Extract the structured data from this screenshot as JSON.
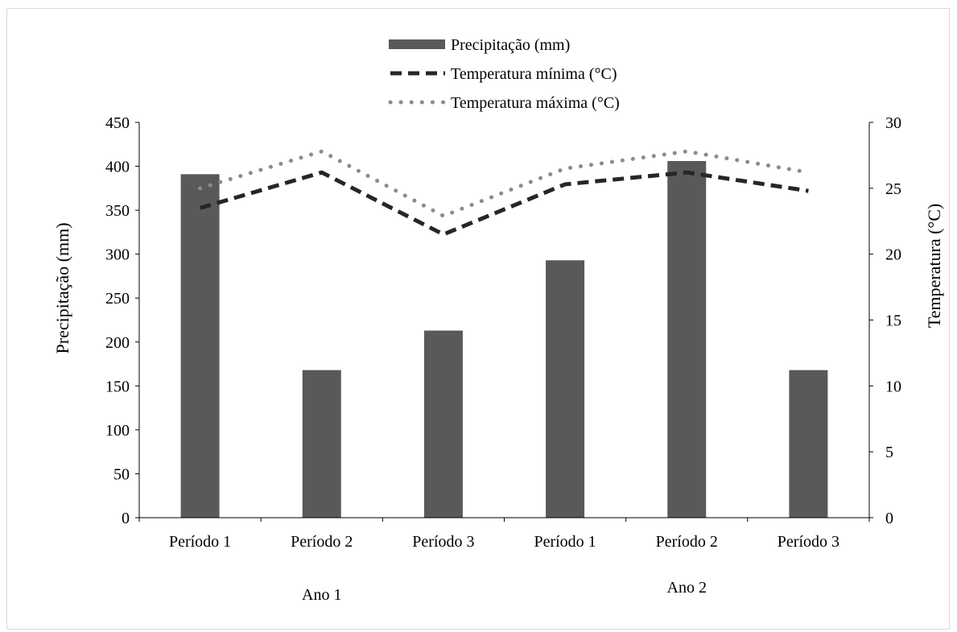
{
  "chart_data": {
    "type": "bar",
    "categories": [
      "Período 1",
      "Período 2",
      "Período 3",
      "Período 1",
      "Período 2",
      "Período 3"
    ],
    "groups": [
      {
        "label": "Ano 1",
        "span": [
          0,
          2
        ]
      },
      {
        "label": "Ano 2",
        "span": [
          3,
          5
        ]
      }
    ],
    "series": [
      {
        "name": "Precipitação (mm)",
        "type": "bar",
        "axis": "left",
        "color": "#595959",
        "values": [
          391,
          168,
          213,
          293,
          406,
          168
        ]
      },
      {
        "name": "Temperatura mínima (°C)",
        "type": "line",
        "style": "dashed",
        "axis": "right",
        "color": "#262626",
        "values": [
          23.5,
          26.2,
          21.5,
          25.3,
          26.2,
          24.8
        ]
      },
      {
        "name": "Temperatura máxima (°C)",
        "type": "line",
        "style": "dotted",
        "axis": "right",
        "color": "#8c8c8c",
        "values": [
          25.0,
          27.8,
          22.9,
          26.5,
          27.8,
          26.2
        ]
      }
    ],
    "ylabel": "Precipitação (mm)",
    "y2label": "Temperatura (°C)",
    "ylim": [
      0,
      450
    ],
    "yticks": [
      0,
      50,
      100,
      150,
      200,
      250,
      300,
      350,
      400,
      450
    ],
    "y2lim": [
      0,
      30
    ],
    "y2ticks": [
      0,
      5,
      10,
      15,
      20,
      25,
      30
    ],
    "grid": false,
    "legend_position": "top-center"
  }
}
